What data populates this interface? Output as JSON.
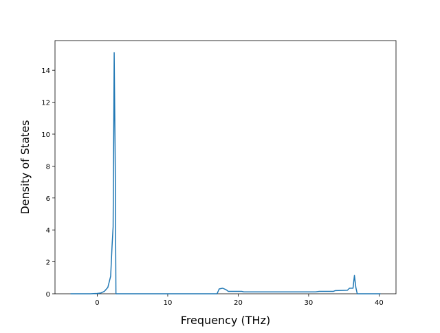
{
  "chart_data": {
    "type": "line",
    "x_label": "Frequency (THz)",
    "y_label": "Density of States",
    "x": [
      -3.8,
      -1,
      0,
      0.5,
      1.0,
      1.5,
      1.9,
      2.1,
      2.25,
      2.4,
      2.55,
      2.65,
      17,
      17.3,
      17.8,
      18.3,
      18.6,
      20.5,
      20.8,
      31,
      31.5,
      33.5,
      33.8,
      35.5,
      35.8,
      36.3,
      36.5,
      36.7,
      36.9,
      40.2
    ],
    "series": [
      {
        "color": "#1f77b4",
        "values": [
          0,
          0,
          0.02,
          0.05,
          0.15,
          0.4,
          1.1,
          3,
          4.2,
          15.1,
          8,
          0,
          0,
          0.3,
          0.35,
          0.25,
          0.15,
          0.15,
          0.12,
          0.12,
          0.15,
          0.15,
          0.2,
          0.22,
          0.35,
          0.35,
          1.15,
          0.4,
          0,
          0
        ]
      }
    ],
    "xlim": [
      -6,
      42.4
    ],
    "xticks": [
      0,
      10,
      20,
      30,
      40
    ],
    "ylim": [
      0,
      15.86
    ],
    "yticks": [
      0,
      2,
      4,
      6,
      8,
      10,
      12,
      14
    ]
  }
}
